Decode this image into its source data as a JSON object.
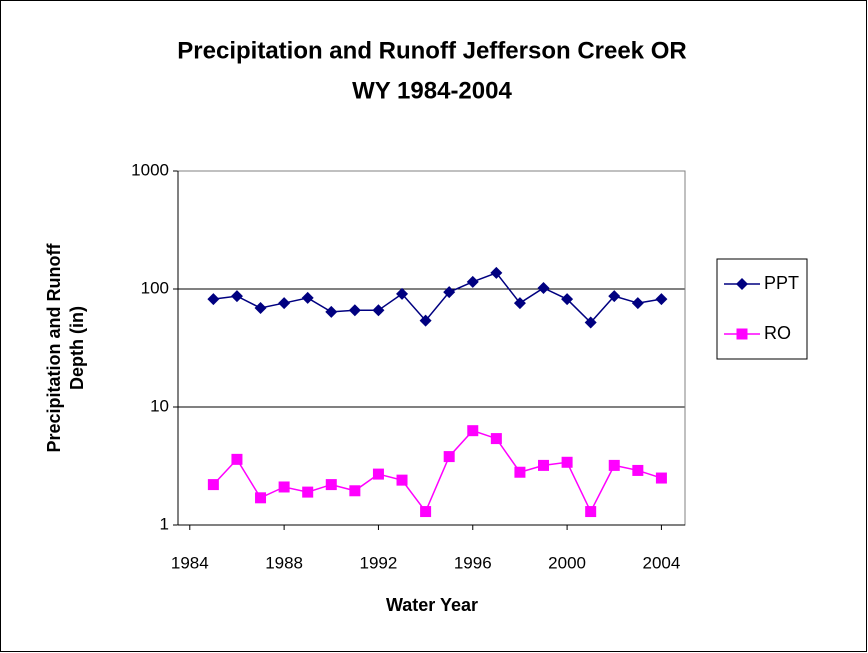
{
  "chart_data": {
    "type": "line",
    "title": [
      "Precipitation and Runoff Jefferson Creek OR",
      "WY 1984-2004"
    ],
    "x_label": "Water Year",
    "y_label": [
      "Precipitation and Runoff",
      "Depth (in)"
    ],
    "x": [
      1985,
      1986,
      1987,
      1988,
      1989,
      1990,
      1991,
      1992,
      1993,
      1994,
      1995,
      1996,
      1997,
      1998,
      1999,
      2000,
      2001,
      2002,
      2003,
      2004
    ],
    "series": [
      {
        "name": "PPT",
        "color": "#000080",
        "marker": "diamond",
        "values": [
          82,
          87,
          69,
          76,
          84,
          64,
          66,
          66,
          91,
          54,
          94,
          115,
          137,
          76,
          102,
          82,
          52,
          87,
          76,
          82
        ]
      },
      {
        "name": "RO",
        "color": "#ff00ff",
        "marker": "square",
        "values": [
          2.2,
          3.6,
          1.7,
          2.1,
          1.9,
          2.2,
          1.95,
          2.7,
          2.4,
          1.3,
          3.8,
          6.3,
          5.4,
          2.8,
          3.2,
          3.4,
          1.3,
          3.2,
          2.9,
          2.5
        ]
      }
    ],
    "xlim": [
      1983.5,
      2005
    ],
    "xticks": [
      1984,
      1988,
      1992,
      1996,
      2000,
      2004
    ],
    "ylim": [
      1,
      1000
    ],
    "yticks": [
      1,
      10,
      100,
      1000
    ],
    "y_log": true,
    "grid": true,
    "legend": "right"
  }
}
